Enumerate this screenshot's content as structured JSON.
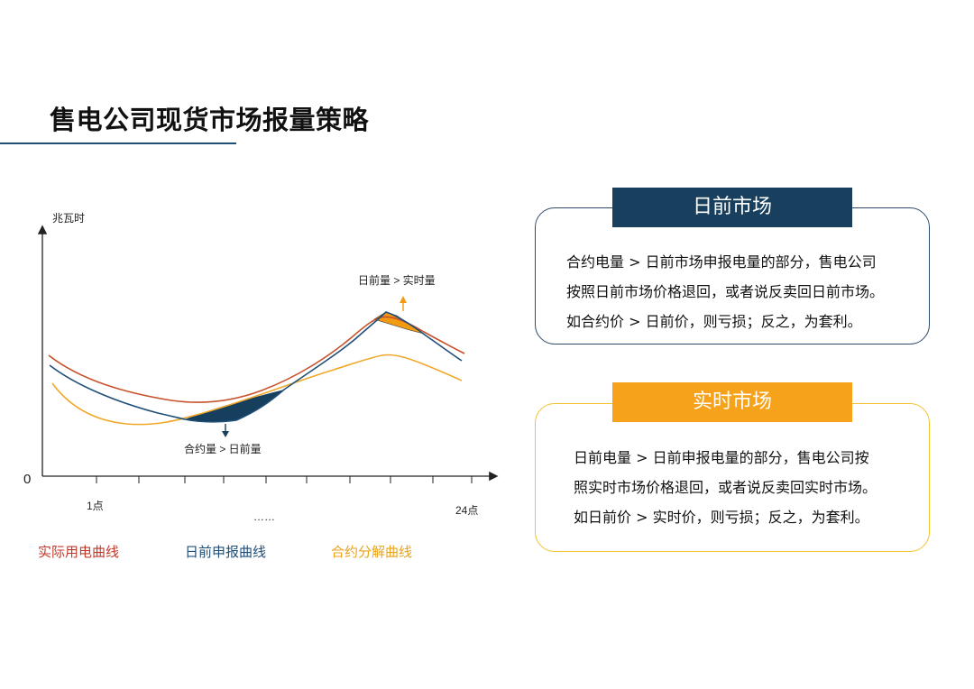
{
  "title": "售电公司现货市场报量策略",
  "chart": {
    "y_axis_label": "兆瓦时",
    "origin_label": "0",
    "x_start_label": "1点",
    "x_end_label": "24点",
    "x_middle_label": "……",
    "annotation_top": "日前量 > 实时量",
    "annotation_bottom": "合约量 > 日前量"
  },
  "legend": {
    "actual": "实际用电曲线",
    "day_ahead": "日前申报曲线",
    "contract": "合约分解曲线"
  },
  "colors": {
    "actual": "#c8512a",
    "day_ahead": "#1f4e79",
    "contract": "#f0a82a",
    "fill_dark": "#163f5e",
    "fill_orange": "#f29b11"
  },
  "panels": [
    {
      "heading": "日前市场",
      "lines": [
        "合约电量 > 日前市场申报电量的部分，售电公司",
        "按照日前市场价格退回，或者说反卖回日前市场。",
        "如合约价 > 日前价，则亏损；反之，为套利。"
      ]
    },
    {
      "heading": "实时市场",
      "lines": [
        "日前电量 > 日前申报电量的部分，售电公司按",
        "照实时市场价格退回，或者说反卖回实时市场。",
        "如日前价 > 实时价，则亏损；反之，为套利。"
      ]
    }
  ]
}
